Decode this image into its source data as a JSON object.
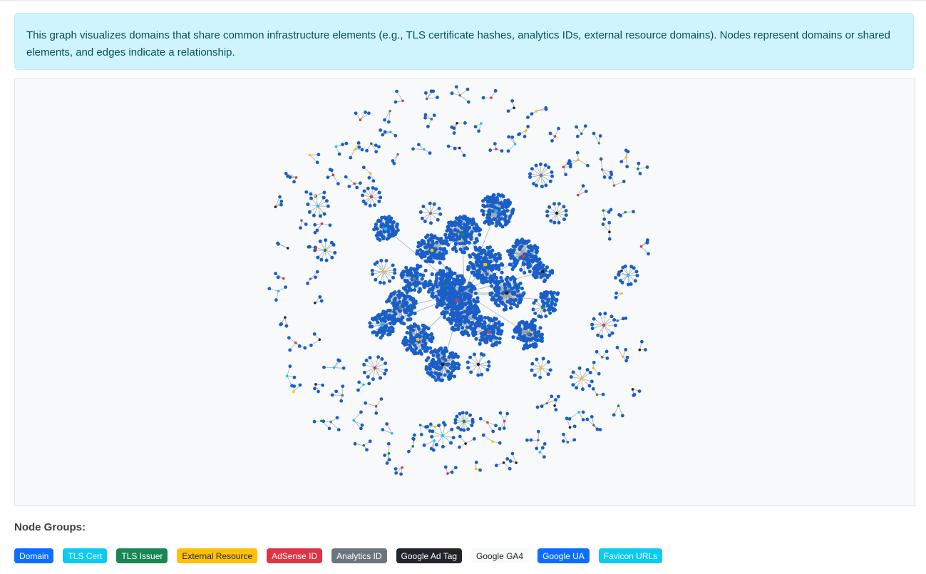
{
  "info": {
    "text": "This graph visualizes domains that share common infrastructure elements (e.g., TLS certificate hashes, analytics IDs, external resource domains). Nodes represent domains or shared elements, and edges indicate a relationship."
  },
  "legend": {
    "title": "Node Groups:",
    "items": [
      {
        "label": "Domain",
        "bg": "#0d6efd",
        "fg": "#ffffff"
      },
      {
        "label": "TLS Cert",
        "bg": "#0dcaf0",
        "fg": "#ffffff"
      },
      {
        "label": "TLS Issuer",
        "bg": "#198754",
        "fg": "#ffffff"
      },
      {
        "label": "External Resource",
        "bg": "#ffc107",
        "fg": "#212529"
      },
      {
        "label": "AdSense ID",
        "bg": "#dc3545",
        "fg": "#ffffff"
      },
      {
        "label": "Analytics ID",
        "bg": "#6c757d",
        "fg": "#ffffff"
      },
      {
        "label": "Google Ad Tag",
        "bg": "#212529",
        "fg": "#ffffff"
      },
      {
        "label": "Google GA4",
        "bg": "#f8f9fa",
        "fg": "#212529"
      },
      {
        "label": "Google UA",
        "bg": "#0d6efd",
        "fg": "#ffffff"
      },
      {
        "label": "Favicon URLs",
        "bg": "#0dcaf0",
        "fg": "#ffffff"
      }
    ]
  },
  "graph": {
    "node_color": "#1a5fc8",
    "edge_color": "#9aa3ab",
    "hub_colors": [
      "#0dcaf0",
      "#198754",
      "#ffc107",
      "#dc3545",
      "#6c757d",
      "#212529"
    ]
  }
}
